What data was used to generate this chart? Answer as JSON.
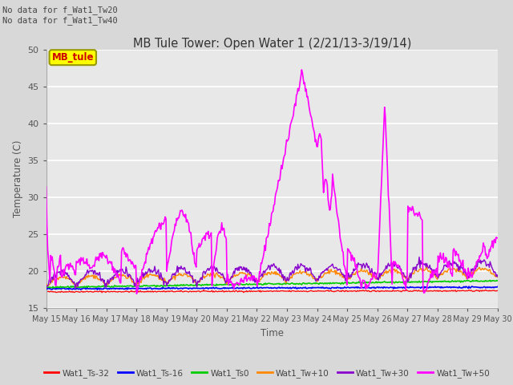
{
  "title": "MB Tule Tower: Open Water 1 (2/21/13-3/19/14)",
  "top_notes": [
    "No data for f_Wat1_Tw20",
    "No data for f_Wat1_Tw40"
  ],
  "xlabel": "Time",
  "ylabel": "Temperature (C)",
  "ylim": [
    15,
    50
  ],
  "yticks": [
    15,
    20,
    25,
    30,
    35,
    40,
    45,
    50
  ],
  "fig_bg_color": "#d8d8d8",
  "plot_bg_color": "#e8e8e8",
  "grid_color": "#ffffff",
  "legend_box_label": "MB_tule",
  "legend_box_facecolor": "#ffff00",
  "legend_box_edgecolor": "#999900",
  "legend_text_color": "#cc0000",
  "series_colors": {
    "Ts32": "#ff0000",
    "Ts16": "#0000ff",
    "Ts0": "#00cc00",
    "Tw10": "#ff8800",
    "Tw30": "#8800cc",
    "Tw50": "#ff00ff"
  },
  "series_labels": {
    "Ts32": "Wat1_Ts-32",
    "Ts16": "Wat1_Ts-16",
    "Ts0": "Wat1_Ts0",
    "Tw10": "Wat1_Tw+10",
    "Tw30": "Wat1_Tw+30",
    "Tw50": "Wat1_Tw+50"
  }
}
